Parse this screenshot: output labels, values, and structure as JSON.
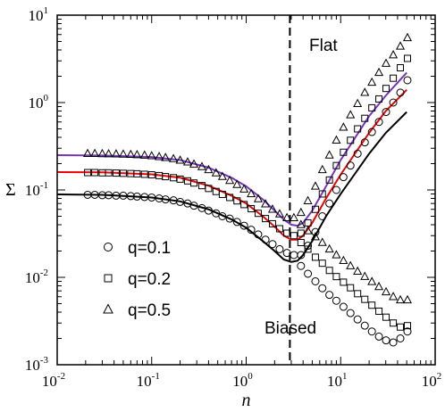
{
  "chart_data": {
    "type": "scatter",
    "xlabel": "n",
    "ylabel": "Σ",
    "x_scale": "log",
    "y_scale": "log",
    "xlim": [
      0.01,
      100
    ],
    "ylim": [
      0.001,
      10
    ],
    "x_ticks": [
      {
        "base": "10",
        "exp": "-2",
        "value": 0.01
      },
      {
        "base": "10",
        "exp": "-1",
        "value": 0.1
      },
      {
        "base": "10",
        "exp": "0",
        "value": 1
      },
      {
        "base": "10",
        "exp": "1",
        "value": 10
      },
      {
        "base": "10",
        "exp": "2",
        "value": 100
      }
    ],
    "y_ticks": [
      {
        "base": "10",
        "exp": "-3",
        "value": 0.001
      },
      {
        "base": "10",
        "exp": "-2",
        "value": 0.01
      },
      {
        "base": "10",
        "exp": "-1",
        "value": 0.1
      },
      {
        "base": "10",
        "exp": "0",
        "value": 1
      },
      {
        "base": "10",
        "exp": "1",
        "value": 10
      }
    ],
    "vertical_line": {
      "x": 2.9,
      "style": "dashed",
      "color": "#000000"
    },
    "annotations": [
      {
        "text": "Flat",
        "x": 5.5,
        "y": 4.5
      },
      {
        "text": "Biased",
        "x": 5.5,
        "y": 0.0022
      }
    ],
    "legend": {
      "placement": "bottom-left",
      "entries": [
        {
          "label": "q=0.1",
          "marker": "circle"
        },
        {
          "label": "q=0.2",
          "marker": "square"
        },
        {
          "label": "q=0.5",
          "marker": "triangle"
        }
      ]
    },
    "series": [
      {
        "kind": "line",
        "color": "#000000",
        "q": 0.1,
        "points": [
          [
            0.01,
            0.089
          ],
          [
            0.03,
            0.088
          ],
          [
            0.1,
            0.082
          ],
          [
            0.2,
            0.074
          ],
          [
            0.4,
            0.06
          ],
          [
            0.7,
            0.046
          ],
          [
            1,
            0.037
          ],
          [
            1.5,
            0.026
          ],
          [
            2,
            0.02
          ],
          [
            2.5,
            0.016
          ],
          [
            3,
            0.015
          ],
          [
            3.5,
            0.0155
          ],
          [
            4,
            0.018
          ],
          [
            5,
            0.026
          ],
          [
            7,
            0.05
          ],
          [
            10,
            0.09
          ],
          [
            20,
            0.26
          ],
          [
            30,
            0.45
          ],
          [
            50,
            0.78
          ]
        ]
      },
      {
        "kind": "line",
        "color": "#ee0000",
        "q": 0.2,
        "points": [
          [
            0.01,
            0.16
          ],
          [
            0.03,
            0.159
          ],
          [
            0.1,
            0.151
          ],
          [
            0.2,
            0.138
          ],
          [
            0.4,
            0.112
          ],
          [
            0.7,
            0.086
          ],
          [
            1,
            0.07
          ],
          [
            1.5,
            0.05
          ],
          [
            2,
            0.038
          ],
          [
            2.5,
            0.03
          ],
          [
            3,
            0.027
          ],
          [
            3.5,
            0.027
          ],
          [
            4,
            0.03
          ],
          [
            5,
            0.042
          ],
          [
            7,
            0.08
          ],
          [
            10,
            0.15
          ],
          [
            20,
            0.45
          ],
          [
            30,
            0.8
          ],
          [
            50,
            1.4
          ]
        ]
      },
      {
        "kind": "line",
        "color": "#7733bb",
        "q": 0.5,
        "points": [
          [
            0.01,
            0.25
          ],
          [
            0.03,
            0.248
          ],
          [
            0.1,
            0.238
          ],
          [
            0.2,
            0.22
          ],
          [
            0.4,
            0.18
          ],
          [
            0.7,
            0.138
          ],
          [
            1,
            0.11
          ],
          [
            1.5,
            0.078
          ],
          [
            2,
            0.058
          ],
          [
            2.5,
            0.046
          ],
          [
            3,
            0.04
          ],
          [
            3.5,
            0.039
          ],
          [
            4,
            0.042
          ],
          [
            5,
            0.058
          ],
          [
            7,
            0.11
          ],
          [
            10,
            0.22
          ],
          [
            20,
            0.7
          ],
          [
            30,
            1.2
          ],
          [
            50,
            2.2
          ]
        ]
      },
      {
        "kind": "scatter",
        "marker": "circle",
        "q": 0.1,
        "branch": "flat",
        "points": [
          [
            0.021,
            0.088
          ],
          [
            0.025,
            0.088
          ],
          [
            0.03,
            0.087
          ],
          [
            0.035,
            0.087
          ],
          [
            0.042,
            0.086
          ],
          [
            0.05,
            0.086
          ],
          [
            0.06,
            0.085
          ],
          [
            0.07,
            0.084
          ],
          [
            0.084,
            0.083
          ],
          [
            0.1,
            0.082
          ],
          [
            0.12,
            0.08
          ],
          [
            0.14,
            0.078
          ],
          [
            0.17,
            0.076
          ],
          [
            0.2,
            0.073
          ],
          [
            0.24,
            0.07
          ],
          [
            0.28,
            0.066
          ],
          [
            0.34,
            0.062
          ],
          [
            0.4,
            0.058
          ],
          [
            0.48,
            0.054
          ],
          [
            0.56,
            0.05
          ],
          [
            0.67,
            0.047
          ],
          [
            0.8,
            0.043
          ],
          [
            0.95,
            0.039
          ],
          [
            1.13,
            0.035
          ],
          [
            1.34,
            0.031
          ],
          [
            1.6,
            0.027
          ],
          [
            1.9,
            0.024
          ],
          [
            2.26,
            0.021
          ],
          [
            2.7,
            0.019
          ],
          [
            3.2,
            0.018
          ],
          [
            3.8,
            0.018
          ],
          [
            4.5,
            0.023
          ],
          [
            5.4,
            0.033
          ],
          [
            6.4,
            0.05
          ],
          [
            7.6,
            0.07
          ],
          [
            9,
            0.1
          ],
          [
            10.7,
            0.14
          ],
          [
            12.7,
            0.19
          ],
          [
            15.1,
            0.26
          ],
          [
            18,
            0.35
          ],
          [
            21.4,
            0.46
          ],
          [
            25.4,
            0.6
          ],
          [
            30.2,
            0.78
          ],
          [
            36,
            1
          ],
          [
            42.8,
            1.3
          ],
          [
            50.9,
            1.8
          ]
        ]
      },
      {
        "kind": "scatter",
        "marker": "circle",
        "q": 0.1,
        "branch": "biased",
        "points": [
          [
            3.8,
            0.0135
          ],
          [
            4.5,
            0.011
          ],
          [
            5.4,
            0.009
          ],
          [
            6.4,
            0.0075
          ],
          [
            7.6,
            0.0063
          ],
          [
            9,
            0.0054
          ],
          [
            10.7,
            0.0046
          ],
          [
            12.7,
            0.0039
          ],
          [
            15.1,
            0.0033
          ],
          [
            18,
            0.0028
          ],
          [
            21.4,
            0.0024
          ],
          [
            25.4,
            0.0021
          ],
          [
            30.2,
            0.0019
          ],
          [
            36,
            0.0018
          ],
          [
            42.8,
            0.002
          ],
          [
            50.9,
            0.0024
          ]
        ]
      },
      {
        "kind": "scatter",
        "marker": "square",
        "q": 0.2,
        "branch": "flat",
        "points": [
          [
            0.021,
            0.158
          ],
          [
            0.025,
            0.158
          ],
          [
            0.03,
            0.157
          ],
          [
            0.035,
            0.157
          ],
          [
            0.042,
            0.156
          ],
          [
            0.05,
            0.155
          ],
          [
            0.06,
            0.154
          ],
          [
            0.07,
            0.153
          ],
          [
            0.084,
            0.151
          ],
          [
            0.1,
            0.149
          ],
          [
            0.12,
            0.146
          ],
          [
            0.14,
            0.142
          ],
          [
            0.17,
            0.138
          ],
          [
            0.2,
            0.133
          ],
          [
            0.24,
            0.127
          ],
          [
            0.28,
            0.12
          ],
          [
            0.34,
            0.112
          ],
          [
            0.4,
            0.104
          ],
          [
            0.48,
            0.096
          ],
          [
            0.56,
            0.089
          ],
          [
            0.67,
            0.082
          ],
          [
            0.8,
            0.075
          ],
          [
            0.95,
            0.068
          ],
          [
            1.13,
            0.061
          ],
          [
            1.34,
            0.054
          ],
          [
            1.6,
            0.047
          ],
          [
            1.9,
            0.041
          ],
          [
            2.26,
            0.036
          ],
          [
            2.7,
            0.032
          ],
          [
            3.2,
            0.03
          ],
          [
            3.8,
            0.032
          ],
          [
            4.5,
            0.042
          ],
          [
            5.4,
            0.06
          ],
          [
            6.4,
            0.09
          ],
          [
            7.6,
            0.13
          ],
          [
            9,
            0.19
          ],
          [
            10.7,
            0.27
          ],
          [
            12.7,
            0.37
          ],
          [
            15.1,
            0.5
          ],
          [
            18,
            0.66
          ],
          [
            21.4,
            0.87
          ],
          [
            25.4,
            1.1
          ],
          [
            30.2,
            1.45
          ],
          [
            36,
            1.9
          ],
          [
            42.8,
            2.5
          ],
          [
            50.9,
            3.2
          ]
        ]
      },
      {
        "kind": "scatter",
        "marker": "square",
        "q": 0.2,
        "branch": "biased",
        "points": [
          [
            3.8,
            0.025
          ],
          [
            4.5,
            0.021
          ],
          [
            5.4,
            0.017
          ],
          [
            6.4,
            0.0145
          ],
          [
            7.6,
            0.012
          ],
          [
            9,
            0.0102
          ],
          [
            10.7,
            0.0088
          ],
          [
            12.7,
            0.0076
          ],
          [
            15.1,
            0.0065
          ],
          [
            18,
            0.0056
          ],
          [
            21.4,
            0.0048
          ],
          [
            25.4,
            0.0041
          ],
          [
            30.2,
            0.0035
          ],
          [
            36,
            0.003
          ],
          [
            42.8,
            0.0027
          ],
          [
            50.9,
            0.0028
          ]
        ]
      },
      {
        "kind": "scatter",
        "marker": "triangle",
        "q": 0.5,
        "branch": "flat",
        "points": [
          [
            0.021,
            0.26
          ],
          [
            0.025,
            0.26
          ],
          [
            0.03,
            0.259
          ],
          [
            0.035,
            0.258
          ],
          [
            0.042,
            0.257
          ],
          [
            0.05,
            0.256
          ],
          [
            0.06,
            0.254
          ],
          [
            0.07,
            0.252
          ],
          [
            0.084,
            0.249
          ],
          [
            0.1,
            0.245
          ],
          [
            0.12,
            0.24
          ],
          [
            0.14,
            0.234
          ],
          [
            0.17,
            0.227
          ],
          [
            0.2,
            0.218
          ],
          [
            0.24,
            0.208
          ],
          [
            0.28,
            0.197
          ],
          [
            0.34,
            0.184
          ],
          [
            0.4,
            0.17
          ],
          [
            0.48,
            0.156
          ],
          [
            0.56,
            0.142
          ],
          [
            0.67,
            0.128
          ],
          [
            0.8,
            0.115
          ],
          [
            0.95,
            0.102
          ],
          [
            1.13,
            0.09
          ],
          [
            1.34,
            0.079
          ],
          [
            1.6,
            0.069
          ],
          [
            1.9,
            0.06
          ],
          [
            2.26,
            0.053
          ],
          [
            2.7,
            0.048
          ],
          [
            3.2,
            0.048
          ],
          [
            3.8,
            0.055
          ],
          [
            4.5,
            0.075
          ],
          [
            5.4,
            0.11
          ],
          [
            6.4,
            0.17
          ],
          [
            7.6,
            0.25
          ],
          [
            9,
            0.37
          ],
          [
            10.7,
            0.52
          ],
          [
            12.7,
            0.72
          ],
          [
            15.1,
            0.97
          ],
          [
            18,
            1.3
          ],
          [
            21.4,
            1.7
          ],
          [
            25.4,
            2.2
          ],
          [
            30.2,
            2.8
          ],
          [
            36,
            3.5
          ],
          [
            42.8,
            4.4
          ],
          [
            50.9,
            5.5
          ]
        ]
      },
      {
        "kind": "scatter",
        "marker": "triangle",
        "q": 0.5,
        "branch": "biased",
        "points": [
          [
            3.8,
            0.04
          ],
          [
            4.5,
            0.034
          ],
          [
            5.4,
            0.029
          ],
          [
            6.4,
            0.025
          ],
          [
            7.6,
            0.021
          ],
          [
            9,
            0.018
          ],
          [
            10.7,
            0.0155
          ],
          [
            12.7,
            0.0135
          ],
          [
            15.1,
            0.0117
          ],
          [
            18,
            0.0102
          ],
          [
            21.4,
            0.0089
          ],
          [
            25.4,
            0.0078
          ],
          [
            30.2,
            0.0068
          ],
          [
            36,
            0.006
          ],
          [
            42.8,
            0.0055
          ],
          [
            50.9,
            0.0055
          ]
        ]
      }
    ]
  }
}
